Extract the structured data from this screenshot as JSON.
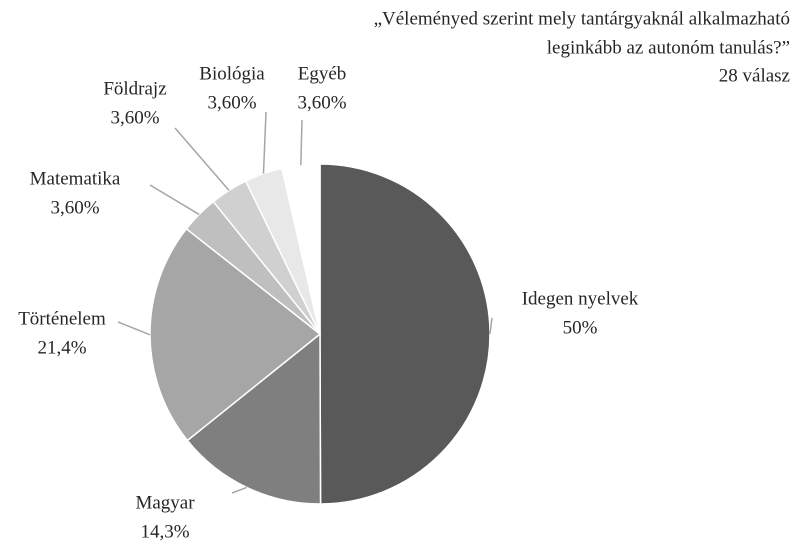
{
  "chart_data": {
    "type": "pie",
    "title": [
      "„Véleményed  szerint mely tantárgyaknál alkalmazható",
      "leginkább az autonóm tanulás?”"
    ],
    "subtitle": "28 válasz",
    "categories": [
      "Idegen nyelvek",
      "Magyar",
      "Történelem",
      "Matematika",
      "Földrajz",
      "Biológia",
      "Egyéb"
    ],
    "values": [
      50,
      14.3,
      21.4,
      3.6,
      3.6,
      3.6,
      3.6
    ],
    "value_labels": [
      "50%",
      "14,3%",
      "21,4%",
      "3,60%",
      "3,60%",
      "3,60%",
      "3,60%"
    ],
    "colors": [
      "#595959",
      "#7f7f7f",
      "#a6a6a6",
      "#bfbfbf",
      "#d0d0d0",
      "#e8e8e8",
      "#ffffff"
    ]
  }
}
